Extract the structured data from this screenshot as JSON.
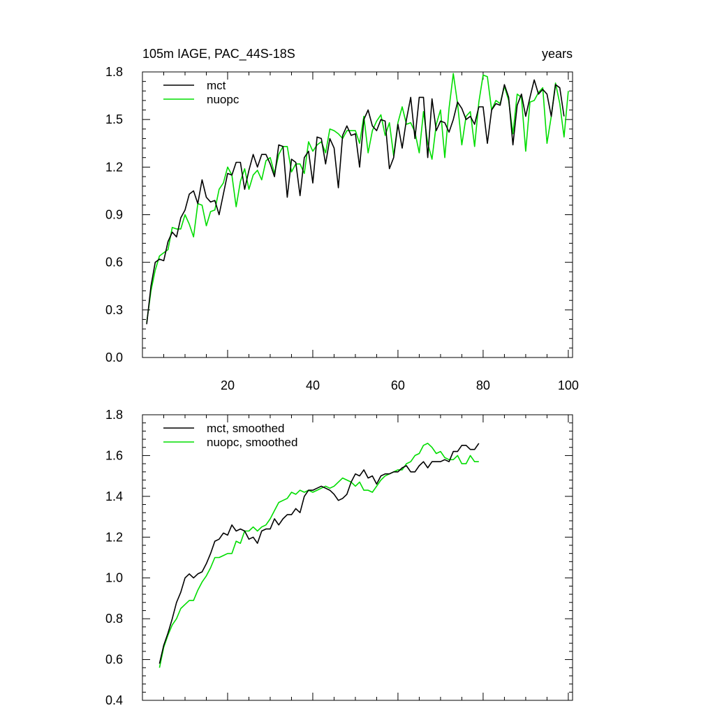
{
  "chart_data": [
    {
      "type": "line",
      "title": "105m IAGE, PAC_44S-18S",
      "title_right": "years",
      "xlim": [
        0,
        101
      ],
      "ylim": [
        0.0,
        1.8
      ],
      "xticks": [
        20,
        40,
        60,
        80,
        100
      ],
      "xtick_labels": [
        "20",
        "40",
        "60",
        "80",
        "100"
      ],
      "yticks": [
        0.0,
        0.3,
        0.6,
        0.9,
        1.2,
        1.5,
        1.8
      ],
      "ytick_labels": [
        "0.0",
        "0.3",
        "0.6",
        "0.9",
        "1.2",
        "1.5",
        "1.8"
      ],
      "legend_position": "top-left",
      "x_start": 1,
      "series": [
        {
          "name": "mct",
          "color": "#000000",
          "values": [
            0.21,
            0.45,
            0.6,
            0.62,
            0.61,
            0.73,
            0.79,
            0.76,
            0.88,
            0.93,
            1.03,
            1.05,
            0.97,
            1.12,
            1.01,
            0.98,
            0.99,
            0.9,
            1.03,
            1.16,
            1.15,
            1.23,
            1.23,
            1.06,
            1.18,
            1.28,
            1.2,
            1.28,
            1.28,
            1.22,
            1.14,
            1.34,
            1.33,
            1.01,
            1.25,
            1.23,
            1.02,
            1.26,
            1.3,
            1.1,
            1.39,
            1.38,
            1.22,
            1.38,
            1.32,
            1.07,
            1.4,
            1.46,
            1.4,
            1.41,
            1.2,
            1.5,
            1.56,
            1.46,
            1.43,
            1.5,
            1.49,
            1.19,
            1.26,
            1.47,
            1.32,
            1.5,
            1.64,
            1.38,
            1.64,
            1.64,
            1.26,
            1.63,
            1.43,
            1.49,
            1.48,
            1.42,
            1.5,
            1.61,
            1.57,
            1.5,
            1.52,
            1.47,
            1.58,
            1.58,
            1.35,
            1.56,
            1.6,
            1.59,
            1.72,
            1.64,
            1.34,
            1.59,
            1.66,
            1.52,
            1.64,
            1.75,
            1.66,
            1.69,
            1.66,
            1.52,
            1.72,
            1.7,
            1.52
          ]
        },
        {
          "name": "nuopc",
          "color": "#00dd00",
          "values": [
            0.22,
            0.42,
            0.55,
            0.64,
            0.66,
            0.68,
            0.82,
            0.81,
            0.81,
            0.9,
            0.84,
            0.76,
            0.97,
            0.96,
            0.83,
            0.92,
            0.93,
            1.06,
            1.1,
            1.2,
            1.15,
            0.95,
            1.11,
            1.19,
            1.06,
            1.15,
            1.18,
            1.12,
            1.24,
            1.26,
            1.16,
            1.28,
            1.33,
            1.33,
            1.17,
            1.22,
            1.22,
            1.16,
            1.36,
            1.3,
            1.34,
            1.36,
            1.29,
            1.44,
            1.43,
            1.41,
            1.38,
            1.43,
            1.43,
            1.43,
            1.35,
            1.52,
            1.29,
            1.43,
            1.49,
            1.53,
            1.4,
            1.48,
            1.27,
            1.48,
            1.58,
            1.47,
            1.48,
            1.42,
            1.29,
            1.55,
            1.35,
            1.25,
            1.47,
            1.56,
            1.26,
            1.57,
            1.79,
            1.6,
            1.34,
            1.52,
            1.55,
            1.33,
            1.61,
            1.78,
            1.77,
            1.56,
            1.62,
            1.6,
            1.71,
            1.62,
            1.41,
            1.66,
            1.64,
            1.3,
            1.61,
            1.62,
            1.67,
            1.7,
            1.35,
            1.52,
            1.73,
            1.6,
            1.39,
            1.68
          ]
        }
      ]
    },
    {
      "type": "line",
      "title": "",
      "xlim": [
        0,
        101
      ],
      "ylim": [
        0.4,
        1.8
      ],
      "xticks": [
        20,
        40,
        60,
        80,
        100
      ],
      "yticks": [
        0.4,
        0.6,
        0.8,
        1.0,
        1.2,
        1.4,
        1.6,
        1.8
      ],
      "ytick_labels": [
        "0.4",
        "0.6",
        "0.8",
        "1.0",
        "1.2",
        "1.4",
        "1.6",
        "1.8"
      ],
      "legend_position": "top-left",
      "x_start": 4,
      "series": [
        {
          "name": "mct, smoothed",
          "color": "#000000",
          "values": [
            0.58,
            0.67,
            0.73,
            0.8,
            0.88,
            0.93,
            1.0,
            1.02,
            1.0,
            1.02,
            1.03,
            1.07,
            1.12,
            1.18,
            1.19,
            1.22,
            1.21,
            1.26,
            1.23,
            1.24,
            1.23,
            1.19,
            1.2,
            1.17,
            1.23,
            1.24,
            1.24,
            1.29,
            1.26,
            1.29,
            1.31,
            1.31,
            1.34,
            1.32,
            1.4,
            1.43,
            1.43,
            1.44,
            1.45,
            1.44,
            1.43,
            1.41,
            1.38,
            1.39,
            1.41,
            1.47,
            1.51,
            1.5,
            1.53,
            1.49,
            1.5,
            1.46,
            1.5,
            1.51,
            1.51,
            1.52,
            1.52,
            1.54,
            1.55,
            1.52,
            1.52,
            1.55,
            1.57,
            1.54,
            1.57,
            1.57,
            1.57,
            1.58,
            1.57,
            1.62,
            1.62,
            1.65,
            1.65,
            1.63,
            1.63,
            1.66
          ]
        },
        {
          "name": "nuopc, smoothed",
          "color": "#00dd00",
          "values": [
            0.56,
            0.66,
            0.72,
            0.77,
            0.8,
            0.85,
            0.87,
            0.89,
            0.89,
            0.94,
            0.98,
            1.01,
            1.05,
            1.1,
            1.1,
            1.11,
            1.12,
            1.12,
            1.18,
            1.17,
            1.23,
            1.23,
            1.25,
            1.23,
            1.25,
            1.26,
            1.29,
            1.33,
            1.37,
            1.38,
            1.39,
            1.42,
            1.41,
            1.43,
            1.42,
            1.43,
            1.42,
            1.43,
            1.44,
            1.45,
            1.44,
            1.45,
            1.47,
            1.49,
            1.48,
            1.47,
            1.45,
            1.47,
            1.43,
            1.43,
            1.42,
            1.45,
            1.48,
            1.5,
            1.51,
            1.52,
            1.53,
            1.53,
            1.56,
            1.57,
            1.6,
            1.61,
            1.65,
            1.66,
            1.64,
            1.61,
            1.62,
            1.59,
            1.58,
            1.58,
            1.6,
            1.56,
            1.56,
            1.6,
            1.57,
            1.57
          ]
        }
      ]
    }
  ]
}
